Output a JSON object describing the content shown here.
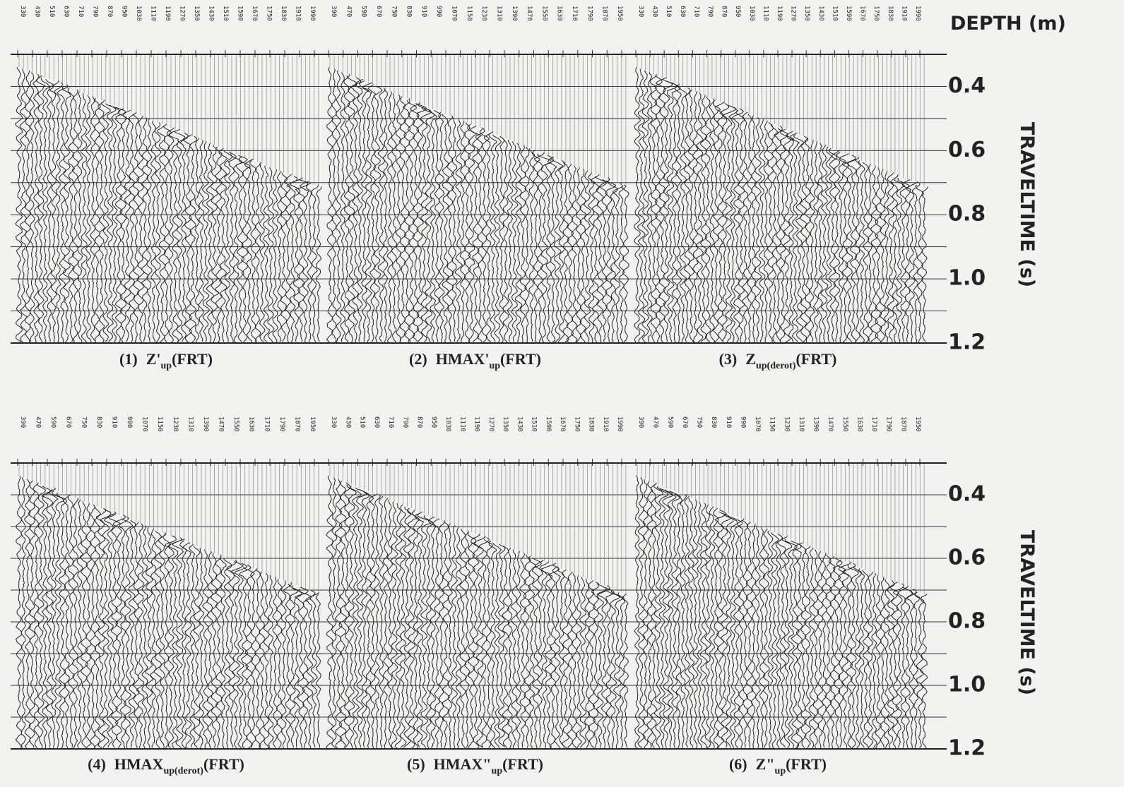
{
  "header": {
    "depth_label": "DEPTH (m)",
    "time_label": "TRAVELTIME (s)"
  },
  "time_labels": [
    "0.4",
    "0.6",
    "0.8",
    "1.0",
    "1.2"
  ],
  "panels": [
    {
      "depths": [
        "330",
        "430",
        "510",
        "630",
        "710",
        "790",
        "870",
        "950",
        "1030",
        "1110",
        "1190",
        "1270",
        "1350",
        "1430",
        "1510",
        "1590",
        "1670",
        "1750",
        "1830",
        "1910",
        "1990"
      ],
      "caption": {
        "number": "(1)",
        "name": "Z'",
        "sub": "up",
        "suffix": "(FRT)"
      }
    },
    {
      "depths": [
        "390",
        "470",
        "590",
        "670",
        "750",
        "830",
        "910",
        "990",
        "1070",
        "1150",
        "1230",
        "1310",
        "1390",
        "1470",
        "1550",
        "1630",
        "1710",
        "1790",
        "1870",
        "1950"
      ],
      "caption": {
        "number": "(2)",
        "name": "HMAX'",
        "sub": "up",
        "suffix": "(FRT)"
      }
    },
    {
      "depths": [
        "330",
        "430",
        "510",
        "630",
        "710",
        "790",
        "870",
        "950",
        "1030",
        "1110",
        "1190",
        "1270",
        "1350",
        "1430",
        "1510",
        "1590",
        "1670",
        "1750",
        "1830",
        "1910",
        "1990"
      ],
      "caption": {
        "number": "(3)",
        "name": "Z",
        "sub": "up(derot)",
        "suffix": "(FRT)"
      }
    },
    {
      "depths": [
        "390",
        "470",
        "590",
        "670",
        "750",
        "830",
        "910",
        "990",
        "1070",
        "1150",
        "1230",
        "1310",
        "1390",
        "1470",
        "1550",
        "1630",
        "1710",
        "1790",
        "1870",
        "1950"
      ],
      "caption": {
        "number": "(4)",
        "name": "HMAX",
        "sub": "up(derot)",
        "suffix": "(FRT)"
      }
    },
    {
      "depths": [
        "330",
        "430",
        "510",
        "630",
        "710",
        "790",
        "870",
        "950",
        "1030",
        "1110",
        "1190",
        "1270",
        "1350",
        "1430",
        "1510",
        "1590",
        "1670",
        "1750",
        "1830",
        "1910",
        "1990"
      ],
      "caption": {
        "number": "(5)",
        "name": "HMAX\"",
        "sub": "up",
        "suffix": "(FRT)"
      }
    },
    {
      "depths": [
        "390",
        "470",
        "590",
        "670",
        "750",
        "830",
        "910",
        "990",
        "1070",
        "1150",
        "1230",
        "1310",
        "1390",
        "1470",
        "1550",
        "1630",
        "1710",
        "1790",
        "1870",
        "1950"
      ],
      "caption": {
        "number": "(6)",
        "name": "Z\"",
        "sub": "up",
        "suffix": "(FRT)"
      }
    }
  ]
}
